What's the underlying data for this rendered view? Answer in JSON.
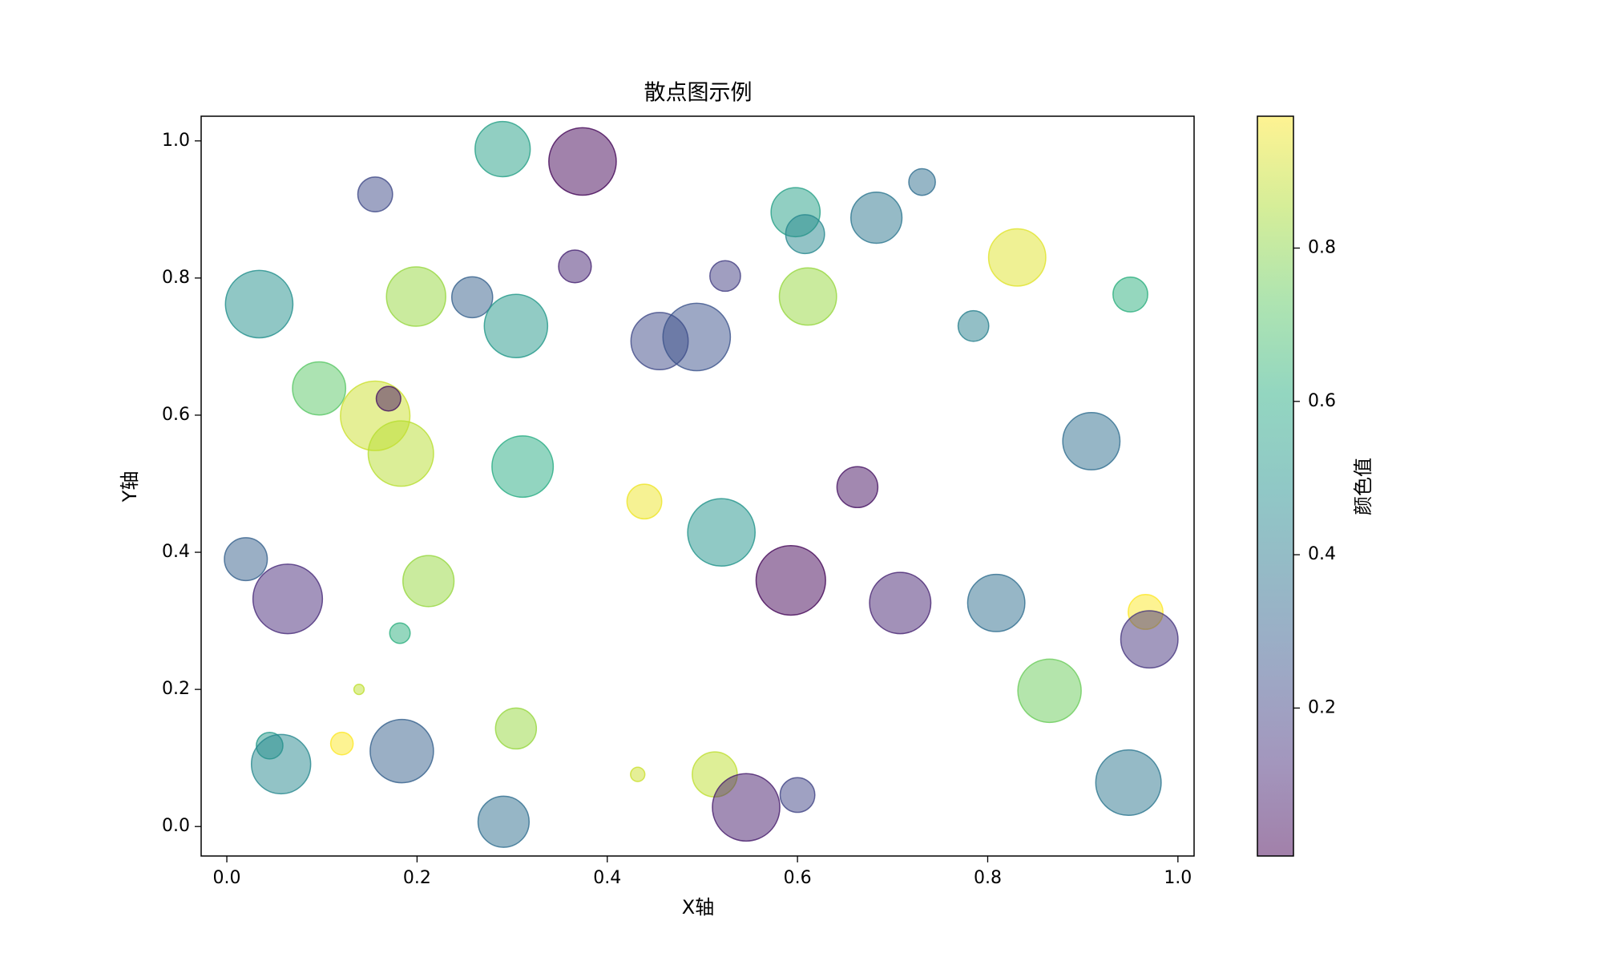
{
  "chart_data": {
    "type": "scatter",
    "title": "散点图示例",
    "x_label": "X轴",
    "y_label": "Y轴",
    "colorbar_label": "颜色值",
    "colormap": "viridis",
    "alpha": 0.5,
    "x": [
      0.29,
      0.374,
      0.156,
      0.598,
      0.608,
      0.683,
      0.731,
      0.831,
      0.95,
      0.785,
      0.034,
      0.199,
      0.258,
      0.304,
      0.366,
      0.524,
      0.611,
      0.455,
      0.494,
      0.097,
      0.156,
      0.17,
      0.183,
      0.311,
      0.439,
      0.663,
      0.52,
      0.909,
      0.02,
      0.064,
      0.212,
      0.593,
      0.708,
      0.809,
      0.966,
      0.97,
      0.182,
      0.139,
      0.865,
      0.045,
      0.057,
      0.121,
      0.184,
      0.304,
      0.432,
      0.513,
      0.546,
      0.6,
      0.948,
      0.291
    ],
    "y": [
      0.988,
      0.97,
      0.922,
      0.896,
      0.864,
      0.888,
      0.94,
      0.83,
      0.776,
      0.73,
      0.762,
      0.773,
      0.772,
      0.73,
      0.817,
      0.803,
      0.773,
      0.708,
      0.714,
      0.639,
      0.599,
      0.624,
      0.544,
      0.525,
      0.474,
      0.495,
      0.429,
      0.562,
      0.39,
      0.332,
      0.358,
      0.359,
      0.326,
      0.326,
      0.313,
      0.273,
      0.282,
      0.2,
      0.198,
      0.118,
      0.091,
      0.121,
      0.11,
      0.143,
      0.076,
      0.076,
      0.028,
      0.046,
      0.064,
      0.007
    ],
    "sizes": [
      729,
      1089,
      289,
      576,
      361,
      625,
      169,
      784,
      289,
      225,
      1089,
      841,
      400,
      961,
      256,
      225,
      784,
      784,
      1089,
      676,
      1156,
      144,
      1024,
      900,
      289,
      400,
      1089,
      784,
      441,
      1156,
      625,
      1156,
      900,
      784,
      289,
      784,
      100,
      25,
      961,
      169,
      841,
      121,
      961,
      400,
      49,
      484,
      1089,
      289,
      1024,
      625
    ],
    "color_values": [
      0.55,
      0.02,
      0.22,
      0.55,
      0.45,
      0.38,
      0.35,
      0.93,
      0.62,
      0.42,
      0.48,
      0.82,
      0.3,
      0.52,
      0.1,
      0.18,
      0.82,
      0.22,
      0.25,
      0.72,
      0.9,
      0.05,
      0.87,
      0.6,
      0.95,
      0.05,
      0.5,
      0.35,
      0.3,
      0.12,
      0.82,
      0.02,
      0.1,
      0.35,
      0.97,
      0.15,
      0.62,
      0.88,
      0.75,
      0.52,
      0.45,
      0.97,
      0.3,
      0.82,
      0.9,
      0.88,
      0.08,
      0.2,
      0.38,
      0.35
    ],
    "xlim": [
      -0.027,
      1.017
    ],
    "ylim": [
      -0.043,
      1.036
    ],
    "clim": [
      0.007,
      0.972
    ],
    "xticks": [
      {
        "value": 0,
        "label": "0.0"
      },
      0.2,
      0.4,
      0.6,
      0.8,
      {
        "value": 1,
        "label": "1.0"
      }
    ],
    "yticks": [
      {
        "value": 0,
        "label": "0.0"
      },
      0.2,
      0.4,
      0.6,
      0.8,
      {
        "value": 1,
        "label": "1.0"
      }
    ],
    "cticks": [
      0.2,
      0.4,
      0.6,
      0.8
    ]
  }
}
